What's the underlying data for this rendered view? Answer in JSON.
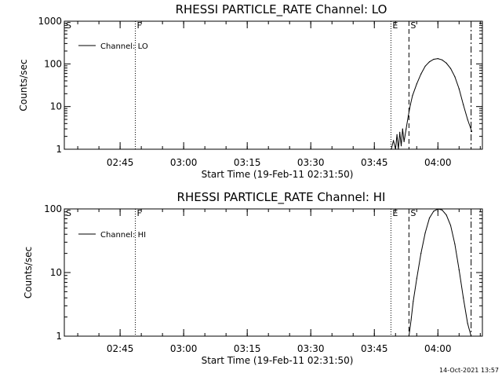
{
  "chart_data": [
    {
      "type": "line",
      "title": "RHESSI PARTICLE_RATE Channel: LO",
      "xlabel": "Start Time (19-Feb-11 02:31:50)",
      "ylabel": "Counts/sec",
      "yscale": "log",
      "ylim": [
        1,
        1000
      ],
      "xlim": [
        "02:31:50",
        "04:10:30"
      ],
      "yticks": [
        "1",
        "10",
        "100",
        "1000"
      ],
      "xticks": [
        "02:45",
        "03:00",
        "03:15",
        "03:30",
        "03:45",
        "04:00"
      ],
      "legend": {
        "placement": "top-left",
        "entries": [
          "Channel: LO"
        ]
      },
      "series": [
        {
          "name": "Channel: LO",
          "x": [
            "03:49:00",
            "03:49:30",
            "03:50:00",
            "03:50:20",
            "03:50:40",
            "03:51:00",
            "03:51:20",
            "03:51:40",
            "03:52:00",
            "03:52:30",
            "03:53:00",
            "03:53:30",
            "03:54:00",
            "03:55:00",
            "03:56:00",
            "03:57:00",
            "03:58:00",
            "03:59:00",
            "04:00:00",
            "04:01:00",
            "04:02:00",
            "04:03:00",
            "04:04:00",
            "04:05:00",
            "04:06:00",
            "04:07:00",
            "04:08:00"
          ],
          "values": [
            1.0,
            1.6,
            1.0,
            2.2,
            1.0,
            2.5,
            1.2,
            3.0,
            1.5,
            3.0,
            6,
            11,
            18,
            34,
            58,
            88,
            112,
            128,
            133,
            124,
            104,
            78,
            50,
            26,
            11,
            5,
            2.6
          ]
        }
      ],
      "annotations": [
        {
          "label": "S",
          "x": "02:31:50",
          "style": "dotted",
          "kind": "line"
        },
        {
          "label": "F",
          "x": "02:48:35",
          "style": "dotted",
          "kind": "line"
        },
        {
          "label": "E",
          "x": "03:48:55",
          "style": "dotted",
          "kind": "line"
        },
        {
          "label": "S",
          "x": "03:53:10",
          "style": "dashed",
          "kind": "line"
        },
        {
          "label": "",
          "x": "04:07:50",
          "style": "dashdot",
          "kind": "line"
        }
      ]
    },
    {
      "type": "line",
      "title": "RHESSI PARTICLE_RATE Channel: HI",
      "xlabel": "Start Time (19-Feb-11 02:31:50)",
      "ylabel": "Counts/sec",
      "yscale": "log",
      "ylim": [
        1,
        100
      ],
      "xlim": [
        "02:31:50",
        "04:10:30"
      ],
      "yticks": [
        "1",
        "10",
        "100"
      ],
      "xticks": [
        "02:45",
        "03:00",
        "03:15",
        "03:30",
        "03:45",
        "04:00"
      ],
      "legend": {
        "placement": "top-left",
        "entries": [
          "Channel: HI"
        ]
      },
      "series": [
        {
          "name": "Channel: HI",
          "x": [
            "03:53:10",
            "03:53:40",
            "03:54:10",
            "03:55:00",
            "03:56:00",
            "03:57:00",
            "03:58:00",
            "03:59:00",
            "04:00:00",
            "04:01:00",
            "04:02:00",
            "04:03:00",
            "04:04:00",
            "04:05:00",
            "04:06:00",
            "04:07:00",
            "04:07:50"
          ],
          "values": [
            1.0,
            1.8,
            3.5,
            8,
            20,
            42,
            72,
            92,
            100,
            96,
            80,
            55,
            28,
            11,
            4,
            1.6,
            1.0
          ]
        }
      ],
      "annotations": [
        {
          "label": "S",
          "x": "02:31:50",
          "style": "dotted",
          "kind": "line"
        },
        {
          "label": "F",
          "x": "02:48:35",
          "style": "dotted",
          "kind": "line"
        },
        {
          "label": "E",
          "x": "03:48:55",
          "style": "dotted",
          "kind": "line"
        },
        {
          "label": "S",
          "x": "03:53:10",
          "style": "dashed",
          "kind": "line"
        },
        {
          "label": "",
          "x": "04:07:50",
          "style": "dashdot",
          "kind": "line"
        }
      ]
    }
  ],
  "footer": {
    "timestamp": "14-Oct-2021 13:57"
  }
}
